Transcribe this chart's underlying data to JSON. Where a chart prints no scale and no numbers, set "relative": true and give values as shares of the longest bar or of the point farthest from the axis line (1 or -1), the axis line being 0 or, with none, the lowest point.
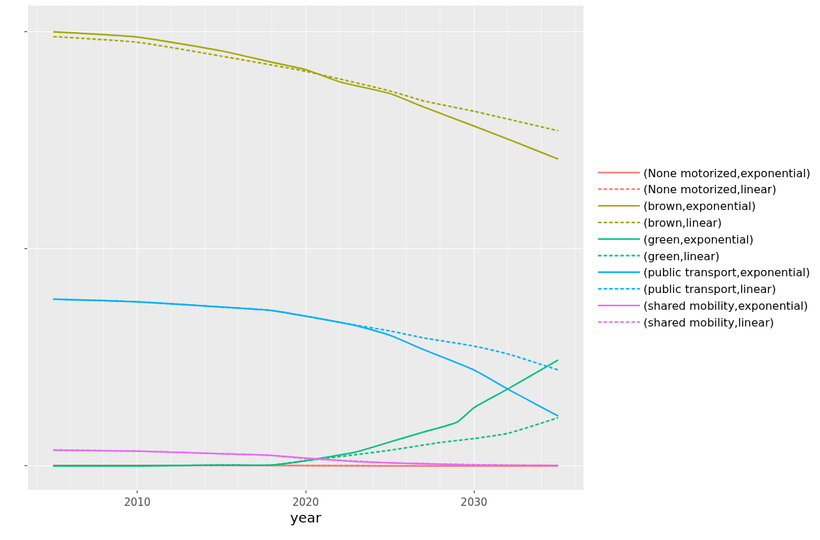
{
  "chart_data": {
    "type": "line",
    "xlabel": "year",
    "relative": true,
    "xlim": [
      2003.5,
      2036.5
    ],
    "xticks": [
      2010,
      2020,
      2030
    ],
    "grid": true,
    "legend": "right",
    "series": [
      {
        "name": "(None motorized,exponential)",
        "color": "#F8766D",
        "line_style": "solid",
        "x": [
          2005,
          2015,
          2025,
          2035
        ],
        "values": [
          0.001,
          0.001,
          0,
          0
        ]
      },
      {
        "name": "(None motorized,linear)",
        "color": "#F8766D",
        "line_style": "dashed",
        "x": [
          2019,
          2025,
          2035
        ],
        "values": [
          0.001,
          0,
          0
        ]
      },
      {
        "name": "(brown,exponential)",
        "color": "#A3A500",
        "line_style": "solid",
        "x": [
          2005,
          2010,
          2015,
          2018,
          2020,
          2022,
          2025,
          2027,
          2030,
          2032,
          2035
        ],
        "values": [
          1.0,
          0.988,
          0.956,
          0.93,
          0.913,
          0.885,
          0.858,
          0.827,
          0.783,
          0.753,
          0.707
        ]
      },
      {
        "name": "(brown,linear)",
        "color": "#A3A500",
        "line_style": "dashed",
        "x": [
          2005,
          2010,
          2015,
          2020,
          2025,
          2027,
          2030,
          2035
        ],
        "values": [
          0.989,
          0.976,
          0.944,
          0.909,
          0.864,
          0.841,
          0.817,
          0.772
        ]
      },
      {
        "name": "(green,exponential)",
        "color": "#00BF7D",
        "line_style": "solid",
        "x": [
          2005,
          2010,
          2015,
          2018,
          2020,
          2023,
          2025,
          2027,
          2029,
          2030,
          2032,
          2035
        ],
        "values": [
          0,
          0,
          0.002,
          0.002,
          0.012,
          0.032,
          0.055,
          0.078,
          0.101,
          0.134,
          0.177,
          0.244
        ]
      },
      {
        "name": "(green,linear)",
        "color": "#00BF7D",
        "line_style": "dashed",
        "x": [
          2005,
          2010,
          2015,
          2018,
          2020,
          2023,
          2025,
          2028,
          2030,
          2032,
          2035
        ],
        "values": [
          0,
          0,
          0.002,
          0.002,
          0.012,
          0.026,
          0.036,
          0.054,
          0.063,
          0.075,
          0.111
        ]
      },
      {
        "name": "(public transport,exponential)",
        "color": "#00B0F6",
        "line_style": "solid",
        "x": [
          2005,
          2010,
          2015,
          2018,
          2020,
          2023,
          2025,
          2027,
          2030,
          2032,
          2035
        ],
        "values": [
          0.384,
          0.378,
          0.366,
          0.358,
          0.345,
          0.323,
          0.301,
          0.268,
          0.221,
          0.177,
          0.115
        ]
      },
      {
        "name": "(public transport,linear)",
        "color": "#00B0F6",
        "line_style": "dashed",
        "x": [
          2005,
          2010,
          2015,
          2018,
          2020,
          2023,
          2025,
          2027,
          2030,
          2032,
          2035
        ],
        "values": [
          0.384,
          0.378,
          0.366,
          0.358,
          0.345,
          0.324,
          0.311,
          0.295,
          0.276,
          0.258,
          0.221
        ]
      },
      {
        "name": "(shared mobility,exponential)",
        "color": "#E76BF3",
        "line_style": "solid",
        "x": [
          2005,
          2010,
          2015,
          2018,
          2020,
          2023,
          2025,
          2030,
          2035
        ],
        "values": [
          0.036,
          0.034,
          0.028,
          0.024,
          0.018,
          0.01,
          0.007,
          0.002,
          0.001
        ]
      },
      {
        "name": "(shared mobility,linear)",
        "color": "#E76BF3",
        "line_style": "dashed",
        "x": [
          2005,
          2010,
          2015,
          2018,
          2020,
          2023,
          2025,
          2030,
          2035
        ],
        "values": [
          0.037,
          0.034,
          0.028,
          0.024,
          0.017,
          0.011,
          0.007,
          0.003,
          0.001
        ]
      }
    ]
  }
}
